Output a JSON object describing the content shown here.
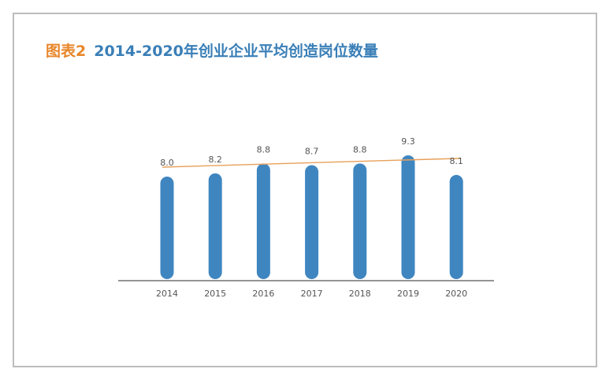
{
  "title": {
    "label": "图表2",
    "text": "2014-2020年创业企业平均创造岗位数量"
  },
  "colors": {
    "bar": "#3f86c1",
    "trendline": "#e8a05a",
    "axis": "#555555",
    "title_label": "#e8862a",
    "title_text": "#3a7fb7"
  },
  "chart_data": {
    "type": "bar",
    "categories": [
      "2014",
      "2015",
      "2016",
      "2017",
      "2018",
      "2019",
      "2020"
    ],
    "values": [
      8.0,
      8.2,
      8.8,
      8.7,
      8.8,
      9.3,
      8.1
    ],
    "value_labels": [
      "8.0",
      "8.2",
      "8.8",
      "8.7",
      "8.8",
      "9.3",
      "8.1"
    ],
    "trendline": {
      "type": "linear",
      "visible": true
    },
    "ylim": [
      0,
      9.3
    ],
    "xlabel": "",
    "ylabel": "",
    "grid": false,
    "legend": "none"
  }
}
